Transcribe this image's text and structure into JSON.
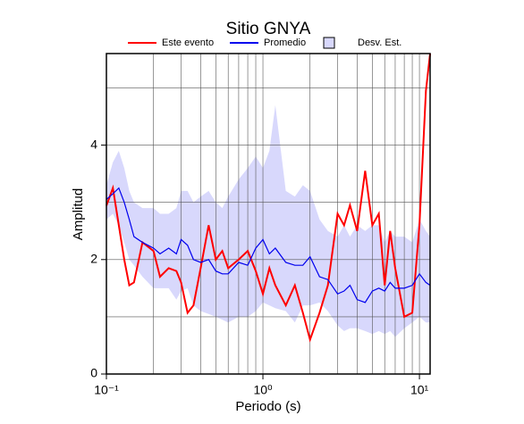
{
  "chart_data": {
    "type": "line",
    "title": "Sitio GNYA",
    "x_label": "Periodo (s)",
    "y_label": "Amplitud",
    "xscale": "log",
    "grid": true,
    "xlim": [
      0.1,
      11.7
    ],
    "ylim": [
      0,
      5.6
    ],
    "xticks": [
      {
        "value": 0.1,
        "label": "10⁻¹"
      },
      {
        "value": 1,
        "label": "10⁰"
      },
      {
        "value": 10,
        "label": "10¹"
      }
    ],
    "xminor": [
      0.2,
      0.3,
      0.4,
      0.5,
      0.6,
      0.7,
      0.8,
      0.9,
      2,
      3,
      4,
      5,
      6,
      7,
      8,
      9
    ],
    "yticks": [
      0,
      2,
      4
    ],
    "yminor": [
      1,
      3,
      5
    ],
    "x": [
      0.1,
      0.11,
      0.12,
      0.13,
      0.14,
      0.15,
      0.17,
      0.2,
      0.22,
      0.25,
      0.28,
      0.3,
      0.33,
      0.36,
      0.4,
      0.45,
      0.5,
      0.55,
      0.6,
      0.7,
      0.8,
      0.9,
      1.0,
      1.1,
      1.2,
      1.4,
      1.6,
      1.8,
      2.0,
      2.3,
      2.6,
      3.0,
      3.3,
      3.6,
      4.0,
      4.5,
      5.0,
      5.5,
      6.0,
      6.5,
      7.0,
      8.0,
      9.0,
      10,
      11,
      11.7
    ],
    "band": {
      "name": "Desv. Est.",
      "color": "#d8d8fc",
      "upper": [
        3.3,
        3.7,
        3.9,
        3.6,
        3.2,
        3.0,
        2.9,
        2.9,
        2.8,
        2.8,
        2.9,
        3.2,
        3.2,
        3.0,
        3.1,
        3.2,
        3.0,
        2.9,
        3.1,
        3.4,
        3.6,
        3.8,
        3.6,
        3.9,
        4.7,
        3.2,
        3.1,
        3.3,
        3.2,
        2.7,
        2.5,
        2.4,
        2.6,
        2.4,
        2.6,
        2.5,
        2.6,
        2.6,
        2.3,
        2.5,
        2.4,
        2.4,
        2.3,
        2.7,
        2.5,
        2.4
      ],
      "lower": [
        2.7,
        2.8,
        2.6,
        2.3,
        2.0,
        1.9,
        1.7,
        1.5,
        1.5,
        1.5,
        1.3,
        1.45,
        1.5,
        1.2,
        1.1,
        1.05,
        1.0,
        0.95,
        0.9,
        1.0,
        1.0,
        1.1,
        1.25,
        1.2,
        1.15,
        1.1,
        0.9,
        1.2,
        1.2,
        1.25,
        1.1,
        0.85,
        0.75,
        0.8,
        0.8,
        0.75,
        0.7,
        0.75,
        0.7,
        0.75,
        0.65,
        0.8,
        0.9,
        1.0,
        0.9,
        0.9
      ]
    },
    "series": [
      {
        "name": "Este evento",
        "color": "#ff0000",
        "values": [
          2.94,
          3.25,
          2.6,
          2.0,
          1.55,
          1.6,
          2.3,
          2.15,
          1.7,
          1.85,
          1.8,
          1.6,
          1.07,
          1.2,
          1.85,
          2.6,
          2.0,
          2.15,
          1.85,
          2.0,
          2.15,
          1.8,
          1.4,
          1.85,
          1.55,
          1.2,
          1.55,
          1.07,
          0.6,
          1.07,
          1.55,
          2.8,
          2.6,
          2.95,
          2.5,
          3.55,
          2.6,
          2.8,
          1.55,
          2.5,
          1.85,
          1.0,
          1.07,
          2.6,
          4.95,
          5.6
        ]
      },
      {
        "name": "Promedio",
        "color": "#0000ee",
        "values": [
          3.05,
          3.15,
          3.25,
          3.0,
          2.7,
          2.4,
          2.3,
          2.2,
          2.1,
          2.2,
          2.1,
          2.35,
          2.25,
          2.0,
          1.95,
          2.0,
          1.8,
          1.75,
          1.75,
          1.95,
          1.9,
          2.2,
          2.35,
          2.1,
          2.2,
          1.95,
          1.9,
          1.9,
          2.05,
          1.7,
          1.65,
          1.4,
          1.45,
          1.55,
          1.3,
          1.25,
          1.45,
          1.5,
          1.45,
          1.6,
          1.5,
          1.5,
          1.55,
          1.75,
          1.6,
          1.55
        ]
      }
    ]
  }
}
